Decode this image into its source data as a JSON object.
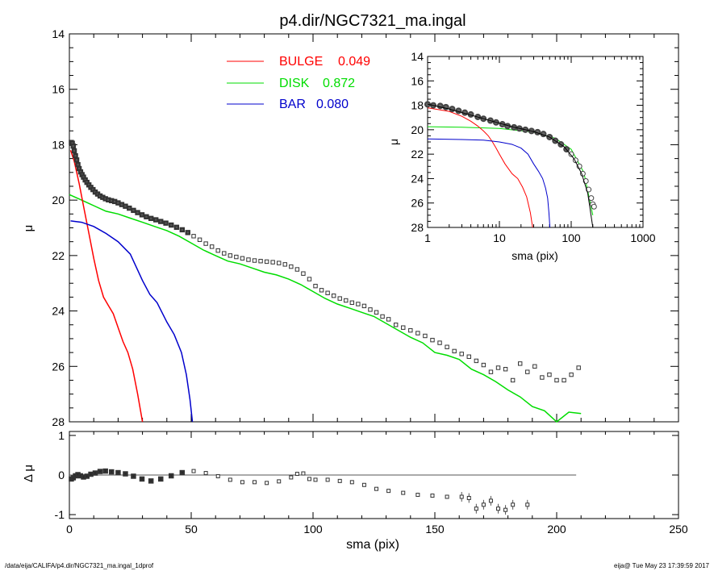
{
  "page": {
    "footer_left": "/data/eija/CALIFA/p4.dir/NGC7321_ma.ingal_1dprof",
    "footer_right": "eija@  Tue May 23 17:39:59 2017"
  },
  "chart_data": [
    {
      "id": "main",
      "type": "scatter",
      "title": "p4.dir/NGC7321_ma.ingal",
      "xlabel": "",
      "ylabel": "μ",
      "xlim": [
        0,
        250
      ],
      "ylim": [
        28,
        14
      ],
      "y_inverted": true,
      "x_ticks": [
        "0",
        "50",
        "100",
        "150",
        "200",
        "250"
      ],
      "y_ticks": [
        "14",
        "16",
        "18",
        "20",
        "22",
        "24",
        "26",
        "28"
      ],
      "legend": {
        "placement": "top-center",
        "entries": [
          {
            "label": "BULGE",
            "value": "0.049",
            "color": "#ff0000"
          },
          {
            "label": "DISK",
            "value": "0.872",
            "color": "#00dd00"
          },
          {
            "label": "BAR",
            "value": "0.080",
            "color": "#0000cc"
          }
        ]
      },
      "data_points": {
        "name": "",
        "marker": "open-square",
        "x": [
          0.8,
          1.2,
          1.6,
          2.0,
          2.5,
          3.0,
          3.5,
          4.0,
          4.6,
          5.2,
          5.8,
          6.5,
          7.2,
          8.0,
          8.8,
          9.7,
          10.6,
          11.6,
          12.6,
          13.7,
          14.8,
          16.0,
          17.3,
          18.6,
          20.0,
          21.5,
          23.0,
          24.6,
          26.3,
          28.0,
          29.8,
          31.6,
          33.5,
          35.5,
          37.5,
          39.6,
          41.8,
          44.0,
          46.3,
          48.6,
          51.0,
          53.5,
          56.0,
          58.5,
          61.0,
          63.5,
          66.0,
          68.5,
          71.0,
          73.5,
          76.0,
          78.5,
          81.0,
          83.5,
          86.0,
          88.5,
          91.0,
          93.5,
          96.0,
          98.5,
          101.0,
          103.5,
          106.0,
          108.5,
          111.0,
          113.5,
          116.0,
          118.5,
          121.0,
          123.5,
          126.0,
          128.5,
          131.0,
          134.0,
          137.0,
          140.0,
          143.0,
          146.0,
          149.0,
          152.0,
          155.0,
          158.0,
          161.0,
          164.0,
          167.0,
          170.0,
          173.0,
          176.0,
          179.0,
          182.0,
          185.0,
          188.0,
          191.0,
          194.0,
          197.0,
          200.0,
          203.0,
          206.0,
          209.0
        ],
        "y": [
          17.92,
          17.95,
          18.05,
          18.22,
          18.4,
          18.55,
          18.72,
          18.86,
          18.98,
          19.08,
          19.17,
          19.27,
          19.36,
          19.45,
          19.54,
          19.62,
          19.71,
          19.78,
          19.85,
          19.9,
          19.95,
          19.99,
          20.02,
          20.05,
          20.1,
          20.16,
          20.22,
          20.29,
          20.37,
          20.45,
          20.53,
          20.6,
          20.66,
          20.71,
          20.77,
          20.83,
          20.9,
          20.98,
          21.07,
          21.17,
          21.3,
          21.43,
          21.57,
          21.68,
          21.82,
          21.92,
          22.0,
          22.05,
          22.1,
          22.15,
          22.18,
          22.2,
          22.22,
          22.24,
          22.27,
          22.32,
          22.4,
          22.5,
          22.65,
          22.85,
          23.1,
          23.25,
          23.35,
          23.45,
          23.55,
          23.62,
          23.7,
          23.75,
          23.82,
          23.95,
          24.05,
          24.2,
          24.3,
          24.5,
          24.6,
          24.7,
          24.8,
          24.9,
          25.05,
          25.15,
          25.3,
          25.45,
          25.55,
          25.65,
          25.8,
          25.95,
          26.2,
          26.05,
          26.1,
          26.5,
          25.9,
          26.2,
          26.0,
          26.4,
          26.3,
          26.5,
          26.5,
          26.3,
          26.05
        ]
      },
      "bulge": {
        "name": "BULGE",
        "color": "#ff0000",
        "x": [
          0.5,
          2,
          4,
          6,
          8,
          10,
          12,
          14,
          16,
          18,
          20,
          22,
          24,
          26,
          28,
          30
        ],
        "y": [
          18.2,
          18.6,
          19.4,
          20.3,
          21.2,
          22.1,
          22.9,
          23.5,
          23.8,
          24.1,
          24.6,
          25.1,
          25.5,
          26.1,
          27.0,
          28.0
        ]
      },
      "disk": {
        "name": "DISK",
        "color": "#00dd00",
        "x": [
          0,
          5,
          10,
          15,
          20,
          25,
          30,
          35,
          40,
          45,
          50,
          55,
          60,
          65,
          70,
          75,
          80,
          85,
          90,
          95,
          100,
          105,
          110,
          115,
          120,
          125,
          130,
          135,
          140,
          145,
          150,
          155,
          160,
          165,
          170,
          175,
          180,
          185,
          190,
          195,
          200,
          205,
          210
        ],
        "y": [
          19.8,
          20.0,
          20.2,
          20.4,
          20.5,
          20.65,
          20.8,
          20.95,
          21.1,
          21.3,
          21.55,
          21.8,
          22.0,
          22.2,
          22.3,
          22.45,
          22.6,
          22.7,
          22.85,
          23.05,
          23.3,
          23.55,
          23.75,
          23.9,
          24.05,
          24.2,
          24.45,
          24.7,
          24.95,
          25.15,
          25.5,
          25.6,
          25.75,
          26.1,
          26.3,
          26.55,
          26.85,
          27.1,
          27.45,
          27.6,
          28.0,
          27.65,
          27.7
        ]
      },
      "bar": {
        "name": "BAR",
        "color": "#0000cc",
        "x": [
          0.5,
          5,
          10,
          15,
          20,
          25,
          30,
          33,
          36,
          40,
          43,
          46,
          48,
          49.5,
          50.5
        ],
        "y": [
          20.75,
          20.8,
          20.95,
          21.2,
          21.5,
          21.95,
          22.9,
          23.4,
          23.7,
          24.4,
          24.85,
          25.5,
          26.3,
          27.2,
          28.0
        ]
      }
    },
    {
      "id": "residual",
      "type": "scatter",
      "xlabel": "sma (pix)",
      "ylabel": "Δ μ",
      "xlim": [
        0,
        250
      ],
      "ylim": [
        -1.1,
        1.1
      ],
      "x_ticks": [
        "0",
        "50",
        "100",
        "150",
        "200",
        "250"
      ],
      "y_ticks": [
        "1",
        "0",
        "-1"
      ],
      "zero_line_xmax": 208,
      "points": {
        "marker": "open-square",
        "x": [
          0.8,
          1.6,
          2.5,
          3.5,
          4.6,
          5.8,
          7.2,
          8.8,
          10.6,
          12.6,
          14.8,
          17.3,
          20.0,
          23.0,
          26.3,
          29.8,
          33.5,
          37.5,
          41.8,
          46.3,
          51.0,
          56.0,
          61.0,
          66.0,
          71.0,
          76.0,
          81.0,
          86.0,
          91.0,
          93.5,
          96.0,
          98.5,
          101.0,
          106.0,
          111.0,
          116.0,
          121.0,
          126.0,
          131.0,
          137.0,
          143.0,
          149.0,
          155.0,
          161.0,
          164.0,
          167.0,
          170.0,
          173.0,
          176.0,
          179.0,
          182.0,
          188.0
        ],
        "y": [
          -0.1,
          -0.07,
          -0.02,
          0.01,
          -0.02,
          -0.05,
          -0.03,
          0.02,
          0.05,
          0.09,
          0.1,
          0.08,
          0.06,
          0.03,
          -0.03,
          -0.1,
          -0.15,
          -0.1,
          -0.02,
          0.06,
          0.1,
          0.05,
          -0.03,
          -0.12,
          -0.18,
          -0.18,
          -0.2,
          -0.16,
          -0.06,
          0.03,
          0.04,
          -0.1,
          -0.12,
          -0.12,
          -0.15,
          -0.18,
          -0.25,
          -0.35,
          -0.4,
          -0.45,
          -0.5,
          -0.52,
          -0.55,
          -0.55,
          -0.58,
          -0.85,
          -0.75,
          -0.65,
          -0.85,
          -0.88,
          -0.75,
          -0.75
        ]
      }
    },
    {
      "id": "inset",
      "type": "line",
      "xlabel": "sma (pix)",
      "ylabel": "μ",
      "x_scale": "log",
      "xlim": [
        1,
        1000
      ],
      "ylim": [
        28,
        14
      ],
      "x_ticks": [
        "1",
        "10",
        "100",
        "1000"
      ],
      "y_ticks": [
        "14",
        "16",
        "18",
        "20",
        "22",
        "24",
        "26",
        "28"
      ],
      "data_points": {
        "marker": "open-circle",
        "x": [
          1.0,
          1.2,
          1.5,
          1.8,
          2.2,
          2.7,
          3.3,
          4.0,
          5.0,
          6.0,
          7.5,
          9.0,
          11.0,
          13.0,
          16.0,
          19.0,
          23.0,
          28.0,
          34.0,
          41.0,
          50.0,
          60.0,
          72.0,
          86.0,
          100.0,
          115.0,
          130.0,
          145.0,
          160.0,
          175.0,
          190.0,
          200.0,
          208.0
        ],
        "y": [
          17.92,
          18.0,
          18.05,
          18.15,
          18.3,
          18.45,
          18.6,
          18.75,
          18.95,
          19.1,
          19.25,
          19.4,
          19.55,
          19.7,
          19.8,
          19.9,
          20.0,
          20.1,
          20.2,
          20.35,
          20.6,
          20.9,
          21.2,
          21.6,
          22.0,
          22.5,
          23.0,
          23.6,
          24.2,
          24.9,
          25.6,
          26.1,
          26.3
        ]
      },
      "model_line": {
        "color": "#000000",
        "x": [
          1,
          2,
          4,
          8,
          16,
          30,
          50,
          80,
          110,
          140,
          170,
          200
        ],
        "y": [
          17.9,
          18.3,
          18.8,
          19.3,
          19.8,
          20.15,
          20.6,
          21.4,
          22.4,
          23.6,
          25.2,
          28.0
        ]
      },
      "bulge": {
        "color": "#ff0000",
        "x": [
          1,
          2,
          3,
          4,
          5,
          6,
          7,
          8,
          9,
          10,
          12,
          15,
          18,
          21,
          24,
          27,
          29
        ],
        "y": [
          18.2,
          18.5,
          18.9,
          19.3,
          19.7,
          20.1,
          20.5,
          21.0,
          21.5,
          22.0,
          22.8,
          23.6,
          24.0,
          24.7,
          25.5,
          26.8,
          28.0
        ]
      },
      "disk": {
        "color": "#00dd00",
        "x": [
          1,
          3,
          10,
          30,
          60,
          100,
          150,
          200
        ],
        "y": [
          19.75,
          19.8,
          19.9,
          20.2,
          20.7,
          21.6,
          23.5,
          27.0
        ]
      },
      "bar": {
        "color": "#0000cc",
        "x": [
          1,
          3,
          6,
          10,
          15,
          20,
          25,
          30,
          35,
          40,
          44,
          47,
          49,
          50.5
        ],
        "y": [
          20.75,
          20.8,
          20.85,
          21.0,
          21.2,
          21.5,
          22.0,
          22.8,
          23.4,
          24.0,
          24.8,
          25.6,
          26.8,
          28.0
        ]
      }
    }
  ]
}
